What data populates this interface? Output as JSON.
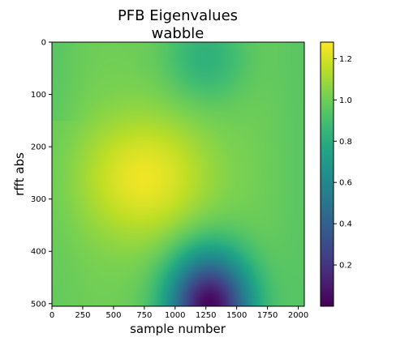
{
  "chart_data": {
    "type": "heatmap",
    "title": "PFB Eigenvalues",
    "subtitle": "wabble",
    "xlabel": "sample number",
    "ylabel": "rfft abs",
    "xlim": [
      0,
      2049
    ],
    "ylim": [
      0,
      505
    ],
    "y_inverted": true,
    "x_ticks": [
      0,
      250,
      500,
      750,
      1000,
      1250,
      1500,
      1750,
      2000
    ],
    "y_ticks": [
      0,
      100,
      200,
      300,
      400,
      500
    ],
    "colormap": "viridis",
    "colorbar": {
      "min": 0.0,
      "max": 1.28,
      "ticks": [
        0.2,
        0.4,
        0.6,
        0.8,
        1.0,
        1.2
      ]
    },
    "features": [
      {
        "x": 750,
        "y": 260,
        "value": 1.25,
        "description": "broad maximum"
      },
      {
        "x": 1280,
        "y": 505,
        "value": 0.02,
        "description": "minimum at bottom edge"
      },
      {
        "x": 1250,
        "y": 30,
        "value": 0.82,
        "description": "shallow dip at top edge"
      }
    ]
  }
}
